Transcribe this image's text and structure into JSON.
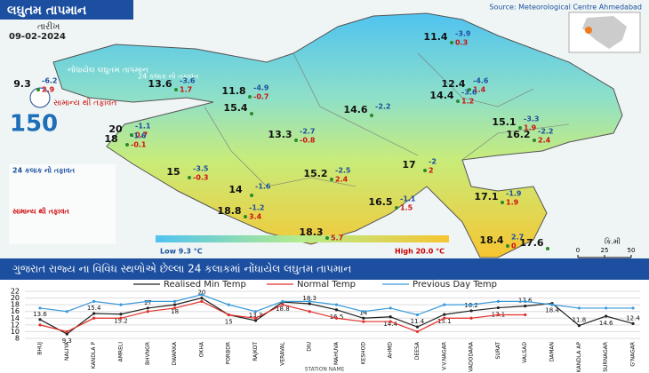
{
  "header": {
    "title": "લઘુતમ તાપમાન",
    "date_label": "તારીખ",
    "date": "09-02-2024",
    "source": "Source: Meteorological Centre Ahmedabad"
  },
  "map": {
    "legend": {
      "observed": "નોંધાયેલ લઘુતમ તાપમાન",
      "change": "24 કલાક નો તફાવત",
      "anomaly": "સામાન્ય થી તફાવત"
    },
    "colorbar": {
      "low": "Low 9.3 °C",
      "high": "High 20.0 °C"
    },
    "scale": {
      "unit": "કિ.મી",
      "ticks": [
        0,
        25,
        50
      ]
    },
    "stations": [
      {
        "temp": 11.4,
        "change": -3.9,
        "anomaly": 0.3
      },
      {
        "temp": 9.3,
        "change": -6.2,
        "anomaly": 2.9
      },
      {
        "temp": 13.6,
        "change": -3.6,
        "anomaly": 1.7
      },
      {
        "temp": 11.8,
        "change": -4.9,
        "anomaly": -0.7
      },
      {
        "temp": 15.4
      },
      {
        "temp": 12.4,
        "change": -4.6,
        "anomaly": 1.4
      },
      {
        "temp": 14.4,
        "change": -3.6,
        "anomaly": 1.2
      },
      {
        "temp": 14.6,
        "change": -2.2
      },
      {
        "temp": 13.3,
        "change": -2.7,
        "anomaly": -0.8
      },
      {
        "temp": 15.1,
        "change": -3.3,
        "anomaly": 1.9
      },
      {
        "temp": 16.2,
        "change": -2.2,
        "anomaly": 2.4
      },
      {
        "temp": 20,
        "change": -1.1,
        "anomaly": 0.7
      },
      {
        "temp": 18,
        "change": -1.6,
        "anomaly": -0.1
      },
      {
        "temp": 15,
        "change": -3.5,
        "anomaly": -0.3
      },
      {
        "temp": 15.2,
        "change": -2.5,
        "anomaly": 2.4
      },
      {
        "temp": 17,
        "change": -2,
        "anomaly": 2
      },
      {
        "temp": 14,
        "change": -1.6
      },
      {
        "temp": 16.5,
        "change": -1.1,
        "anomaly": 1.5
      },
      {
        "temp": 18.8,
        "change": -1.2,
        "anomaly": 3.4
      },
      {
        "temp": 18.3,
        "anomaly": 5.7
      },
      {
        "temp": 17.1,
        "change": -1.9,
        "anomaly": 1.9
      },
      {
        "temp": 18.4,
        "change": 2.7,
        "anomaly": 0.0
      },
      {
        "temp": 17.6
      }
    ]
  },
  "banner": "ગુજરાત રાજ્ય ના વિવિધ સ્થળોએ છેલ્લા 24 કલાકમાં નોંધાયેલ લઘુતમ તાપમાન",
  "chart_data": {
    "type": "line",
    "x_label": "STATION NAME",
    "categories": [
      "BHUJ",
      "NALIYA",
      "KANDLA P",
      "AMRELI",
      "BHVNGR",
      "DWARKA",
      "OKHA",
      "PORBDR",
      "RAJKOT",
      "VERAVAL",
      "DIU",
      "MAHUVA",
      "KESHOD",
      "AHMD",
      "DEESA",
      "V.V.NAGAR",
      "VADODARA",
      "SURAT",
      "VALSAD",
      "DAMAN",
      "KANDLA AP",
      "SURNAGAR",
      "G'NAGAR"
    ],
    "series": [
      {
        "name": "Realised Min Temp",
        "color": "#222222",
        "labels": true,
        "values": [
          13.6,
          9.3,
          15.4,
          15.2,
          17,
          18,
          20,
          15,
          13.3,
          18.8,
          18.3,
          16.5,
          14,
          14.4,
          11.4,
          15.1,
          16.2,
          17.1,
          17.6,
          18.4,
          11.8,
          14.6,
          12.4
        ]
      },
      {
        "name": "Normal Temp",
        "color": "#e0302a",
        "values": [
          12,
          10,
          14,
          14,
          16,
          17,
          19,
          15,
          14,
          18,
          16,
          14,
          13,
          13,
          10,
          14,
          14,
          15,
          15,
          null,
          null,
          null,
          null
        ]
      },
      {
        "name": "Previous Day Temp",
        "color": "#3a9ad9",
        "values": [
          17,
          16,
          19,
          18,
          19,
          19,
          21,
          18,
          16,
          19,
          19,
          18,
          16,
          17,
          15,
          18,
          18,
          19,
          19,
          18,
          17,
          17,
          17
        ]
      }
    ],
    "ylim": [
      8,
      22
    ],
    "yticks": [
      8,
      10,
      12,
      14,
      16,
      18,
      20,
      22
    ],
    "grid": true
  }
}
